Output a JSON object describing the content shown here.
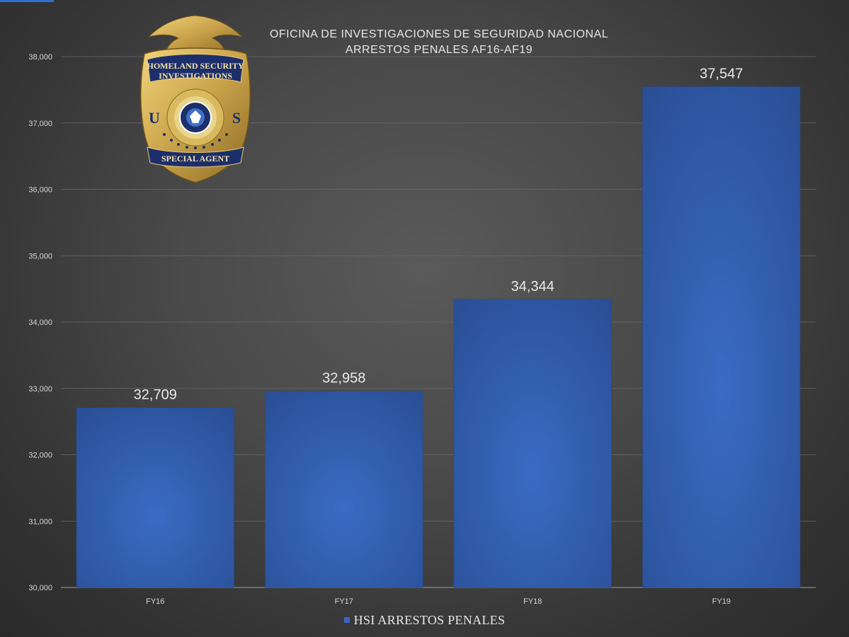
{
  "title_line_1": "OFICINA DE INVESTIGACIONES DE SEGURIDAD NACIONAL",
  "title_line_2": "ARRESTOS PENALES AF16-AF19",
  "badge": {
    "top_banner_text": [
      "HOMELAND SECURITY",
      "INVESTIGATIONS"
    ],
    "left_letter": "U",
    "right_letter": "S",
    "bottom_banner_text": "SPECIAL AGENT"
  },
  "colors": {
    "bar": "#2f5aa8",
    "bar_light": "#3a6bc3",
    "gridline": "#6a6a6a",
    "badge_gold": "#c9a24a",
    "badge_navy": "#1c2f6b"
  },
  "chart_data": {
    "type": "bar",
    "title": "OFICINA DE INVESTIGACIONES DE SEGURIDAD NACIONAL\nARRESTOS PENALES AF16-AF19",
    "categories": [
      "FY16",
      "FY17",
      "FY18",
      "FY19"
    ],
    "series": [
      {
        "name": "HSI ARRESTOS PENALES",
        "values": [
          32709,
          32958,
          34344,
          37547
        ]
      }
    ],
    "value_labels": [
      "32,709",
      "32,958",
      "34,344",
      "37,547"
    ],
    "y_ticks": [
      30000,
      31000,
      32000,
      33000,
      34000,
      35000,
      36000,
      37000,
      38000
    ],
    "y_tick_labels": [
      "30,000",
      "31,000",
      "32,000",
      "33,000",
      "34,000",
      "35,000",
      "36,000",
      "37,000",
      "38,000"
    ],
    "ylim": [
      30000,
      38000
    ],
    "xlabel": "",
    "ylabel": "",
    "grid": true,
    "legend": "bottom"
  }
}
